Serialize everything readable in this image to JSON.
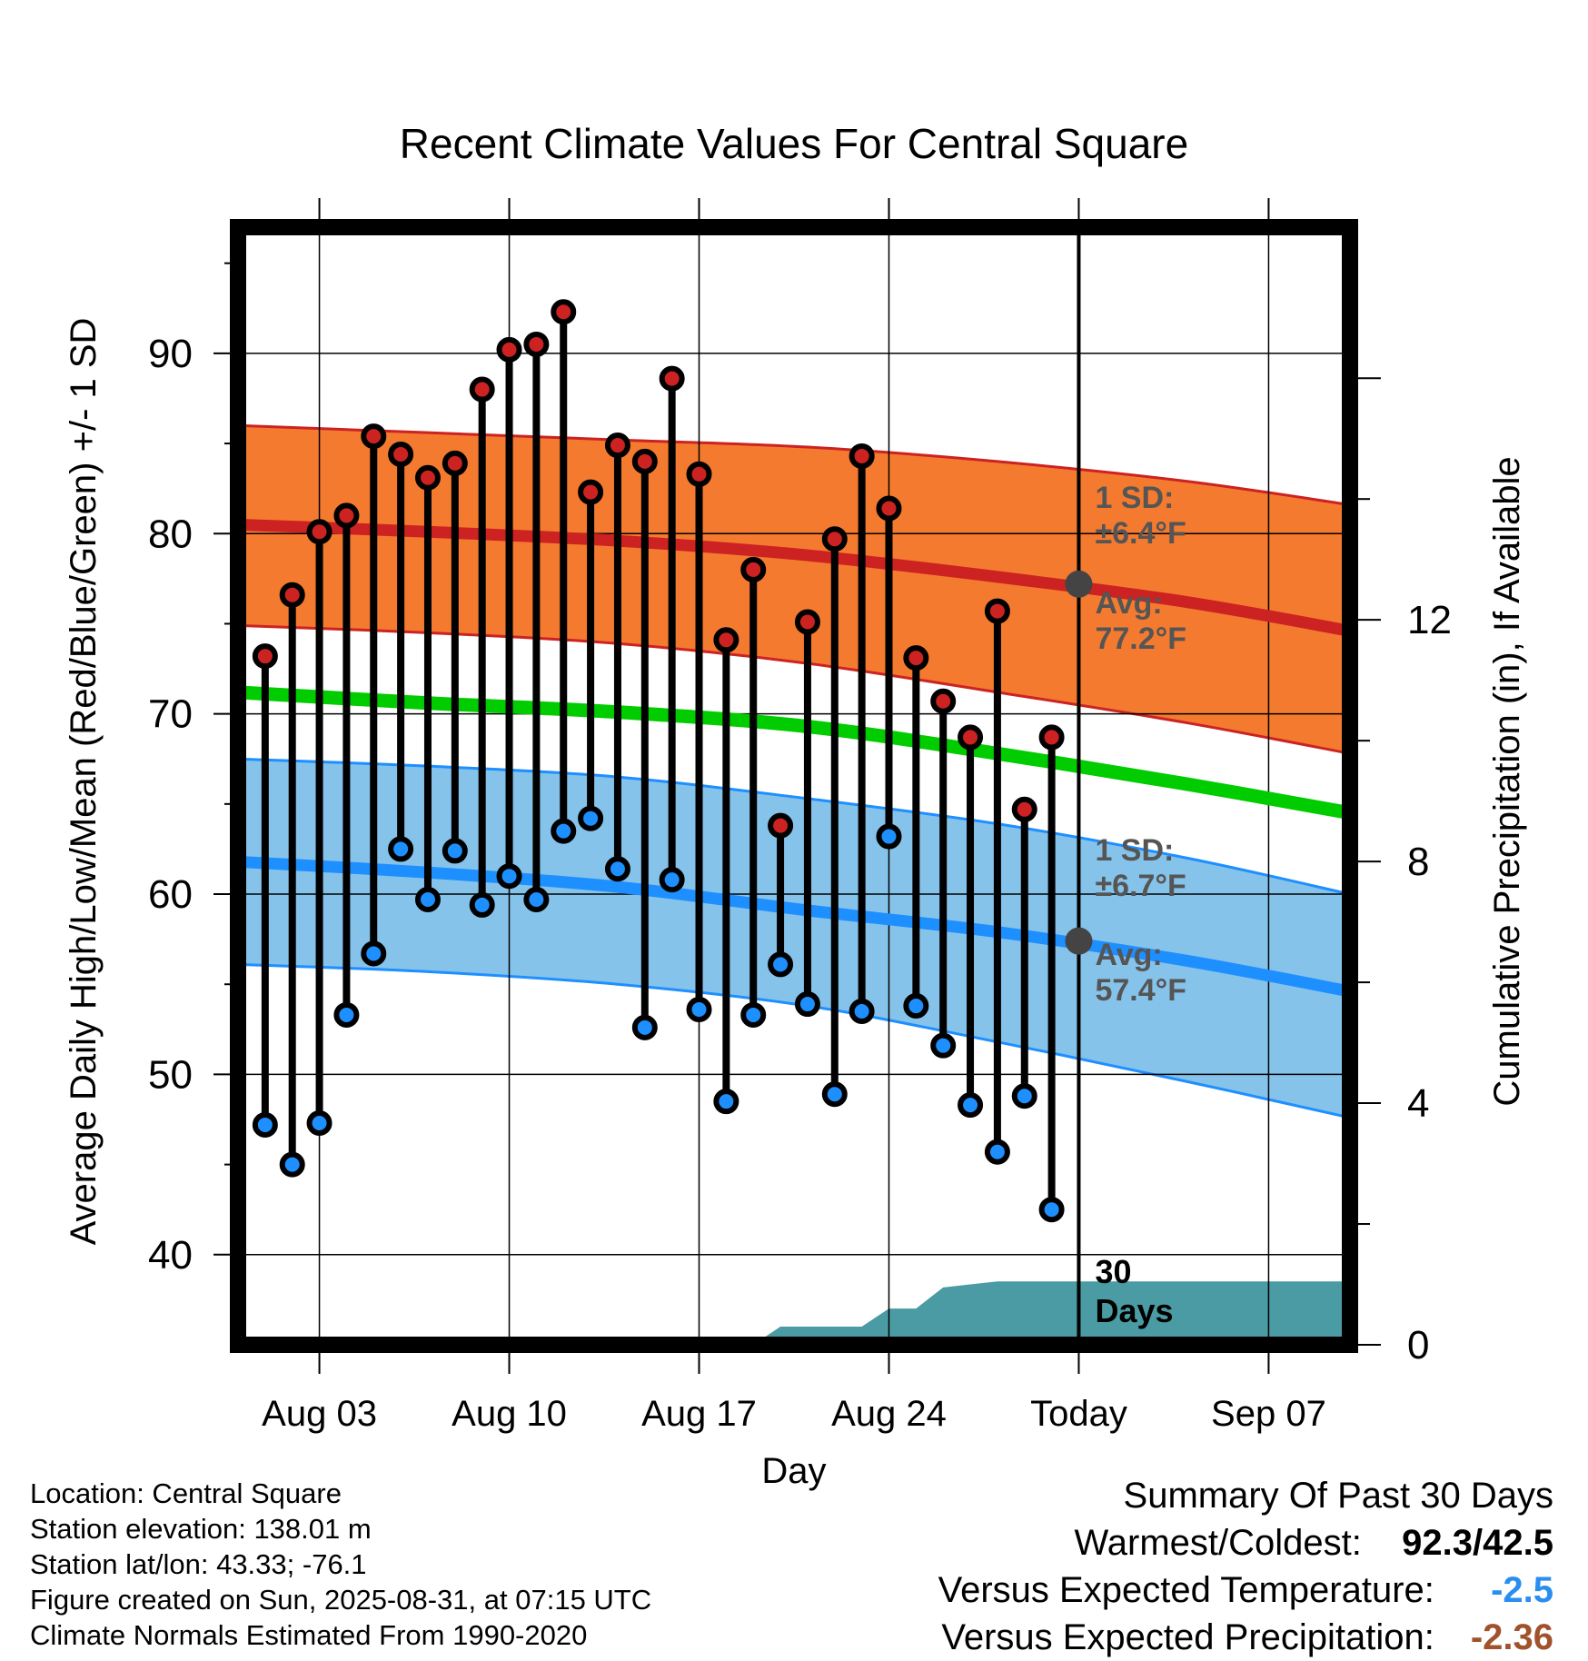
{
  "chart_data": {
    "type": "line",
    "title": "Recent Climate Values For Central Square",
    "xlabel": "Day",
    "ylabel_left": "Average Daily High/Low/Mean (Red/Blue/Green) +/- 1 SD",
    "ylabel_right": "Cumulative Precipitation (in), If Available",
    "x_range": [
      "2025-07-31",
      "2025-09-10"
    ],
    "y_range": [
      35,
      97
    ],
    "y_ticks": [
      40,
      50,
      60,
      70,
      80,
      90
    ],
    "y2_range": [
      0,
      18.5
    ],
    "y2_ticks": [
      0,
      4,
      8,
      12
    ],
    "x_ticks": [
      {
        "date": "2025-08-03",
        "label": "Aug 03"
      },
      {
        "date": "2025-08-10",
        "label": "Aug 10"
      },
      {
        "date": "2025-08-17",
        "label": "Aug 17"
      },
      {
        "date": "2025-08-24",
        "label": "Aug 24"
      },
      {
        "date": "2025-08-31",
        "label": "Today"
      },
      {
        "date": "2025-09-07",
        "label": "Sep 07"
      }
    ],
    "grid": true,
    "dates": [
      "2025-08-01",
      "2025-08-02",
      "2025-08-03",
      "2025-08-04",
      "2025-08-05",
      "2025-08-06",
      "2025-08-07",
      "2025-08-08",
      "2025-08-09",
      "2025-08-10",
      "2025-08-11",
      "2025-08-12",
      "2025-08-13",
      "2025-08-14",
      "2025-08-15",
      "2025-08-16",
      "2025-08-17",
      "2025-08-18",
      "2025-08-19",
      "2025-08-20",
      "2025-08-21",
      "2025-08-22",
      "2025-08-23",
      "2025-08-24",
      "2025-08-25",
      "2025-08-26",
      "2025-08-27",
      "2025-08-28",
      "2025-08-29",
      "2025-08-30"
    ],
    "highs": [
      73.2,
      76.6,
      80.1,
      81.0,
      85.4,
      84.4,
      83.1,
      83.9,
      88.0,
      90.2,
      90.5,
      92.3,
      82.3,
      84.9,
      84.0,
      88.6,
      83.3,
      74.1,
      78.0,
      63.8,
      75.1,
      79.7,
      84.3,
      81.4,
      73.1,
      70.7,
      68.7,
      75.7,
      64.7,
      68.7
    ],
    "lows": [
      47.2,
      45.0,
      47.3,
      53.3,
      56.7,
      62.5,
      59.7,
      62.4,
      59.4,
      61.0,
      59.7,
      63.5,
      64.2,
      61.4,
      52.6,
      60.8,
      53.6,
      48.5,
      53.3,
      56.1,
      53.9,
      48.9,
      53.5,
      63.2,
      53.8,
      51.6,
      48.3,
      45.7,
      48.8,
      42.5
    ],
    "normals": {
      "dates": [
        "2025-07-31",
        "2025-08-07",
        "2025-08-14",
        "2025-08-21",
        "2025-08-28",
        "2025-09-04",
        "2025-09-10"
      ],
      "avg_high": [
        80.5,
        80.1,
        79.6,
        78.8,
        77.6,
        76.2,
        74.6
      ],
      "high_sd_upper": [
        86.0,
        85.6,
        85.2,
        84.8,
        84.0,
        82.9,
        81.6
      ],
      "high_sd_lower": [
        74.9,
        74.5,
        73.9,
        72.8,
        71.2,
        69.5,
        67.8
      ],
      "mean": [
        71.2,
        70.6,
        70.1,
        69.3,
        67.8,
        66.1,
        64.5
      ],
      "avg_low": [
        61.8,
        61.2,
        60.4,
        59.1,
        57.9,
        56.3,
        54.6
      ],
      "low_sd_upper": [
        67.5,
        67.1,
        66.5,
        65.3,
        63.9,
        62.0,
        60.0
      ],
      "low_sd_lower": [
        56.1,
        55.7,
        55.0,
        53.8,
        51.8,
        49.6,
        47.6
      ]
    },
    "precipitation": {
      "dates": [
        "2025-08-18",
        "2025-08-19",
        "2025-08-20",
        "2025-08-21",
        "2025-08-22",
        "2025-08-23",
        "2025-08-24",
        "2025-08-25",
        "2025-08-26",
        "2025-08-27",
        "2025-08-28",
        "2025-08-29",
        "2025-08-30",
        "2025-08-31",
        "2025-09-10"
      ],
      "cumulative": [
        0.0,
        0.0,
        0.3,
        0.3,
        0.3,
        0.3,
        0.6,
        0.6,
        0.95,
        1.0,
        1.05,
        1.05,
        1.05,
        1.05,
        1.05
      ]
    },
    "annotations": {
      "high_sd": "1 SD:",
      "high_sd_value": "±6.4°F",
      "high_avg": "Avg:",
      "high_avg_value": "77.2°F",
      "low_sd": "1 SD:",
      "low_sd_value": "±6.7°F",
      "low_avg": "Avg:",
      "low_avg_value": "57.4°F",
      "window_days": "30",
      "window_days_unit": "Days"
    },
    "today_high_avg": 77.2,
    "today_low_avg": 57.4,
    "colors": {
      "high": "#cc2222",
      "low": "#1e8fff",
      "mean": "#00cc00",
      "high_band": "#f47a2f",
      "low_band": "#86c3ea",
      "precip": "#4a9ba3",
      "marker_avg": "#444444",
      "label_gray": "#555555"
    }
  },
  "footer": {
    "location": "Location: Central Square",
    "elevation": "Station elevation: 138.01 m",
    "latlon": "Station lat/lon: 43.33; -76.1",
    "created": "Figure created on Sun, 2025-08-31, at 07:15 UTC",
    "normals": "Climate Normals Estimated From 1990-2020"
  },
  "summary": {
    "heading": "Summary Of Past 30 Days",
    "warm_cold_label": "Warmest/Coldest:",
    "warm_cold_value": "92.3/42.5",
    "temp_label": "Versus Expected Temperature:",
    "temp_value": "-2.5",
    "temp_color": "#2a8ef0",
    "precip_label": "Versus Expected Precipitation:",
    "precip_value": "-2.36",
    "precip_color": "#a0522d"
  }
}
